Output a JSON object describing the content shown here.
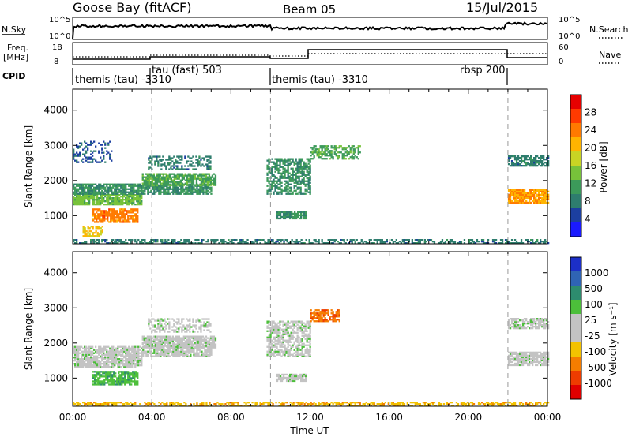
{
  "header": {
    "radar": "Goose Bay (fitACF)",
    "beam": "Beam 05",
    "date": "15/Jul/2015"
  },
  "info_panels": {
    "nsky": {
      "label": "N.Sky",
      "right_label": "N.Search",
      "left_ticks": [
        "10^5",
        "10^0"
      ],
      "right_ticks": [
        "10^5",
        "10^0"
      ]
    },
    "freq": {
      "label_top": "Freq.",
      "label_unit": "[MHz]",
      "right_label": "Nave",
      "left_ticks": [
        "18",
        "8"
      ],
      "right_ticks": [
        "60",
        "0"
      ]
    },
    "cpid": {
      "label": "CPID",
      "segments": [
        {
          "start_h": 0.0,
          "end_h": 4.0,
          "text": "themis (tau) -3310"
        },
        {
          "start_h": 4.0,
          "end_h": 10.0,
          "text": "tau (fast) 503"
        },
        {
          "start_h": 10.0,
          "end_h": 22.0,
          "text": "themis (tau) -3310"
        },
        {
          "start_h": 16.0,
          "end_h": 22.0,
          "text": "rbsp 200"
        }
      ]
    }
  },
  "colors": {
    "power": [
      "#1a1aff",
      "#1c3fa0",
      "#2e7d6e",
      "#3c9a5a",
      "#77c23a",
      "#c8d424",
      "#ffb400",
      "#ff7a00",
      "#ff3a00",
      "#e60000"
    ],
    "velocity": [
      "#1c2fc8",
      "#2f64b4",
      "#2d8c6e",
      "#4cbf3a",
      "#c3c3c3",
      "#c3c3c3",
      "#f3c200",
      "#f57d00",
      "#ee3c00",
      "#e00000"
    ]
  },
  "chart_data": [
    {
      "type": "heatmap",
      "name": "power",
      "ylabel": "Slant Range [km]",
      "xlabel": "",
      "yticks": [
        1000,
        2000,
        3000,
        4000
      ],
      "ylim": [
        200,
        4600
      ],
      "xlim": [
        0,
        24
      ],
      "colorbar": {
        "label": "Power [dB]",
        "ticks": [
          "4",
          "8",
          "12",
          "16",
          "20",
          "24",
          "28"
        ],
        "range": [
          0,
          32
        ]
      },
      "regions": [
        {
          "t": [
            0.0,
            3.5
          ],
          "r": [
            1300,
            1600
          ],
          "value": 14,
          "density": 0.85
        },
        {
          "t": [
            1.0,
            3.3
          ],
          "r": [
            800,
            1200
          ],
          "value": 24,
          "density": 0.8
        },
        {
          "t": [
            0.5,
            1.5
          ],
          "r": [
            400,
            700
          ],
          "value": 20,
          "density": 0.6
        },
        {
          "t": [
            0.0,
            7.0
          ],
          "r": [
            1600,
            1900
          ],
          "value": 10,
          "density": 0.8
        },
        {
          "t": [
            3.5,
            7.2
          ],
          "r": [
            1850,
            2200
          ],
          "value": 12,
          "density": 0.85
        },
        {
          "t": [
            3.8,
            7.0
          ],
          "r": [
            2300,
            2700
          ],
          "value": 8,
          "density": 0.45
        },
        {
          "t": [
            0.0,
            2.0
          ],
          "r": [
            2500,
            3100
          ],
          "value": 6,
          "density": 0.3
        },
        {
          "t": [
            9.8,
            12.0
          ],
          "r": [
            1600,
            2600
          ],
          "value": 10,
          "density": 0.6
        },
        {
          "t": [
            10.3,
            11.8
          ],
          "r": [
            900,
            1100
          ],
          "value": 10,
          "density": 0.8
        },
        {
          "t": [
            12.0,
            14.5
          ],
          "r": [
            2600,
            3000
          ],
          "value": 12,
          "density": 0.55
        },
        {
          "t": [
            22.0,
            24.0
          ],
          "r": [
            1350,
            1750
          ],
          "value": 22,
          "density": 0.85
        },
        {
          "t": [
            22.0,
            24.0
          ],
          "r": [
            2400,
            2700
          ],
          "value": 8,
          "density": 0.7
        },
        {
          "t": [
            0.0,
            24.0
          ],
          "r": [
            200,
            320
          ],
          "value": 8,
          "density": 0.55
        }
      ]
    },
    {
      "type": "heatmap",
      "name": "velocity",
      "ylabel": "Slant Range [km]",
      "xlabel": "Time UT",
      "yticks": [
        1000,
        2000,
        3000,
        4000
      ],
      "ylim": [
        200,
        4600
      ],
      "xlim": [
        0,
        24
      ],
      "xticks": [
        "00:00",
        "04:00",
        "08:00",
        "12:00",
        "16:00",
        "20:00",
        "00:00"
      ],
      "colorbar": {
        "label": "Velocity [m s⁻¹]",
        "ticks": [
          "1000",
          "500",
          "100",
          "25",
          "-25",
          "-100",
          "-500",
          "-1000"
        ],
        "range": [
          1,
          10
        ]
      },
      "regions": [
        {
          "t": [
            0.0,
            3.5
          ],
          "r": [
            1300,
            1600
          ],
          "value": 5,
          "density": 0.85
        },
        {
          "t": [
            1.0,
            3.3
          ],
          "r": [
            800,
            1200
          ],
          "value": 4,
          "density": 0.8
        },
        {
          "t": [
            0.0,
            7.0
          ],
          "r": [
            1600,
            1900
          ],
          "value": 5,
          "density": 0.8
        },
        {
          "t": [
            3.5,
            7.2
          ],
          "r": [
            1850,
            2200
          ],
          "value": 5,
          "density": 0.85
        },
        {
          "t": [
            3.8,
            7.0
          ],
          "r": [
            2300,
            2700
          ],
          "value": 5,
          "density": 0.45
        },
        {
          "t": [
            9.8,
            12.0
          ],
          "r": [
            1600,
            2600
          ],
          "value": 5,
          "density": 0.6
        },
        {
          "t": [
            10.3,
            11.8
          ],
          "r": [
            900,
            1100
          ],
          "value": 5,
          "density": 0.8
        },
        {
          "t": [
            12.0,
            13.5
          ],
          "r": [
            2600,
            2950
          ],
          "value": 8,
          "density": 0.7
        },
        {
          "t": [
            22.0,
            24.0
          ],
          "r": [
            1350,
            1750
          ],
          "value": 5,
          "density": 0.85
        },
        {
          "t": [
            22.0,
            24.0
          ],
          "r": [
            2400,
            2700
          ],
          "value": 5,
          "density": 0.7
        },
        {
          "t": [
            0.0,
            24.0
          ],
          "r": [
            200,
            320
          ],
          "value": 7,
          "density": 0.55
        }
      ]
    }
  ]
}
